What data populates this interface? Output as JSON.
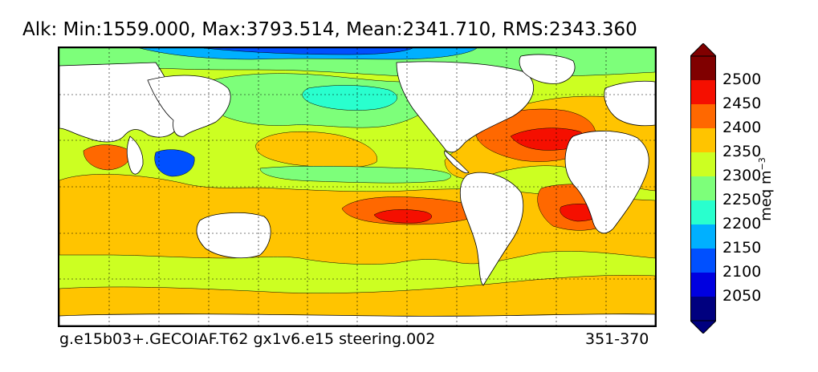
{
  "title": "Alk: Min:1559.000, Max:3793.514, Mean:2341.710, RMS:2343.360",
  "footer": {
    "case_name": "g.e15b03+.GECOIAF.T62 gx1v6.e15 steering.002",
    "years": "351-370"
  },
  "colorbar": {
    "units_base": "meq m",
    "units_exp": "−3",
    "levels": [
      {
        "value": "",
        "color": "#00007f"
      },
      {
        "value": "2050",
        "color": "#0000e0"
      },
      {
        "value": "2100",
        "color": "#0050ff"
      },
      {
        "value": "2150",
        "color": "#00b0ff"
      },
      {
        "value": "2200",
        "color": "#29ffce"
      },
      {
        "value": "2250",
        "color": "#7dff7a"
      },
      {
        "value": "2300",
        "color": "#ccff22"
      },
      {
        "value": "2350",
        "color": "#ffc400"
      },
      {
        "value": "2400",
        "color": "#ff6800"
      },
      {
        "value": "2450",
        "color": "#f50f00"
      },
      {
        "value": "2500",
        "color": "#800000"
      }
    ],
    "extend": "both",
    "under_color": "#00007f",
    "over_color": "#800000"
  },
  "map": {
    "projection": "cylindrical",
    "land_color": "#ffffff",
    "coastline_color": "#000000",
    "gridlines": "dotted"
  }
}
